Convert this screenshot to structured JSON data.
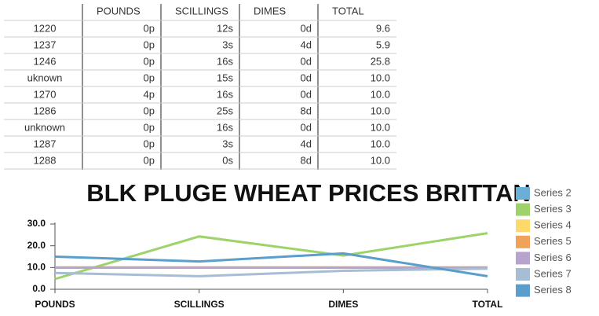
{
  "table": {
    "columns": [
      "POUNDS",
      "SCILLINGS",
      "DIMES",
      "TOTAL"
    ],
    "rows": [
      [
        "1220",
        "0p",
        "12s",
        "0d",
        "9.6"
      ],
      [
        "1237",
        "0p",
        "3s",
        "4d",
        "5.9"
      ],
      [
        "1246",
        "0p",
        "16s",
        "0d",
        "25.8"
      ],
      [
        "uknown",
        "0p",
        "15s",
        "0d",
        "10.0"
      ],
      [
        "1270",
        "4p",
        "16s",
        "0d",
        "10.0"
      ],
      [
        "1286",
        "0p",
        "25s",
        "8d",
        "10.0"
      ],
      [
        "unknown",
        "0p",
        "16s",
        "0d",
        "10.0"
      ],
      [
        "1287",
        "0p",
        "3s",
        "4d",
        "10.0"
      ],
      [
        "1288",
        "0p",
        "0s",
        "8d",
        "10.0"
      ]
    ]
  },
  "chart_data": {
    "type": "line",
    "title": "BLK PLUGE WHEAT PRICES BRITTAN",
    "categories": [
      "POUNDS",
      "SCILLINGS",
      "DIMES",
      "TOTAL"
    ],
    "ylim": [
      0,
      30
    ],
    "yticks": [
      {
        "value": 0,
        "label": "0.0"
      },
      {
        "value": 10,
        "label": "10.0"
      },
      {
        "value": 20,
        "label": "20.0"
      },
      {
        "value": 30,
        "label": "30.0"
      }
    ],
    "series": [
      {
        "name": "Series 2",
        "color": "#6baed6",
        "values": [
          10,
          10,
          10,
          10
        ]
      },
      {
        "name": "Series 3",
        "color": "#9ed36a",
        "values": [
          4.7,
          24.3,
          15.5,
          25.8
        ]
      },
      {
        "name": "Series 4",
        "color": "#fdd96b",
        "values": [
          10,
          10,
          10,
          10
        ]
      },
      {
        "name": "Series 5",
        "color": "#f0a15a",
        "values": [
          10,
          10,
          10,
          10
        ]
      },
      {
        "name": "Series 6",
        "color": "#b7a3cc",
        "values": [
          10,
          10,
          10,
          10
        ]
      },
      {
        "name": "Series 7",
        "color": "#a7bdd3",
        "values": [
          7.5,
          6,
          8.5,
          9.5
        ]
      },
      {
        "name": "Series 8",
        "color": "#5a9fcc",
        "values": [
          15,
          12.8,
          16.5,
          6
        ]
      }
    ]
  }
}
